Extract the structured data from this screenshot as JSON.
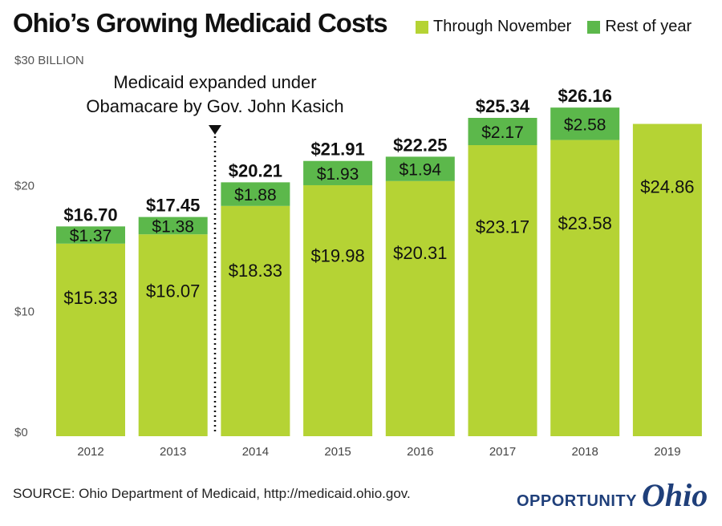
{
  "title": "Ohio’s Growing Medicaid Costs",
  "legend": {
    "through": "Through November",
    "rest": "Rest of year"
  },
  "colors": {
    "through": "#b5d334",
    "rest": "#5cb84b"
  },
  "annotation": {
    "line1": "Medicaid expanded under",
    "line2": "Obamacare by Gov. John Kasich"
  },
  "source": "SOURCE: Ohio Department of Medicaid, http://medicaid.ohio.gov.",
  "logo": {
    "word1": "OPPORTUNITY",
    "word2": "Ohio"
  },
  "chart_data": {
    "type": "bar",
    "stacked": true,
    "categories": [
      "2012",
      "2013",
      "2014",
      "2015",
      "2016",
      "2017",
      "2018",
      "2019"
    ],
    "series": [
      {
        "name": "Through November",
        "values": [
          15.33,
          16.07,
          18.33,
          19.98,
          20.31,
          23.17,
          23.58,
          24.86
        ]
      },
      {
        "name": "Rest of year",
        "values": [
          1.37,
          1.38,
          1.88,
          1.93,
          1.94,
          2.17,
          2.58,
          null
        ]
      }
    ],
    "segment_labels": {
      "through": [
        "$15.33",
        "$16.07",
        "$18.33",
        "$19.98",
        "$20.31",
        "$23.17",
        "$23.58",
        "$24.86"
      ],
      "rest": [
        "$1.37",
        "$1.38",
        "$1.88",
        "$1.93",
        "$1.94",
        "$2.17",
        "$2.58",
        ""
      ]
    },
    "totals": [
      "$16.70",
      "$17.45",
      "$20.21",
      "$21.91",
      "$22.25",
      "$25.34",
      "$26.16",
      ""
    ],
    "y_ticks": [
      {
        "value": 0,
        "label": "$0"
      },
      {
        "value": 10,
        "label": "$10"
      },
      {
        "value": 20,
        "label": "$20"
      },
      {
        "value": 30,
        "label": "$30 BILLION"
      }
    ],
    "ylim": [
      0,
      30
    ],
    "grid": false,
    "legend_position": "top-right",
    "annotation_between": [
      "2013",
      "2014"
    ]
  }
}
